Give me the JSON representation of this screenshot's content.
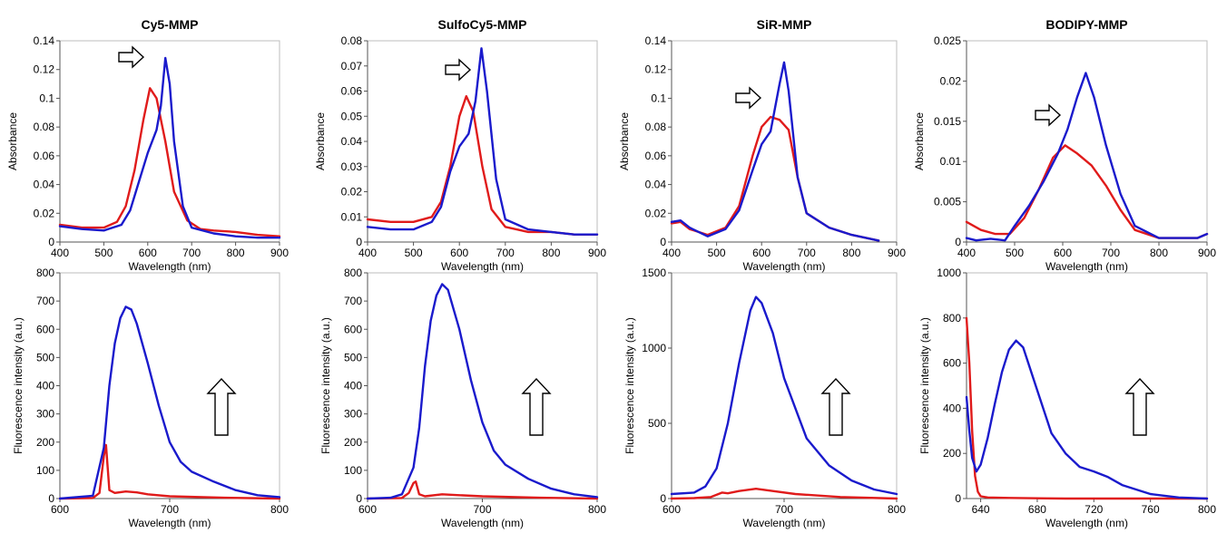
{
  "chart_data": [
    {
      "type": "line",
      "title": "Cy5-MMP",
      "xlabel": "Wavelength (nm)",
      "ylabel": "Absorbance",
      "xlim": [
        400,
        900
      ],
      "ylim": [
        0,
        0.14
      ],
      "xticks": [
        400,
        500,
        600,
        700,
        800,
        900
      ],
      "yticks": [
        0,
        0.02,
        0.04,
        0.06,
        0.08,
        0.1,
        0.12,
        0.14
      ],
      "xtick_labels": [
        "400",
        "500",
        "600",
        "700",
        "800",
        "900"
      ],
      "ytick_labels": [
        "0",
        "0.02",
        "0.04",
        "0.06",
        "0.08",
        "0.1",
        "0.12",
        "0.14"
      ],
      "arrow": "right",
      "series": [
        {
          "color": "#e01b1b",
          "x": [
            400,
            450,
            500,
            530,
            550,
            570,
            590,
            605,
            620,
            640,
            660,
            690,
            720,
            750,
            800,
            850,
            900
          ],
          "y": [
            0.012,
            0.01,
            0.01,
            0.014,
            0.025,
            0.05,
            0.085,
            0.107,
            0.1,
            0.07,
            0.035,
            0.015,
            0.009,
            0.008,
            0.007,
            0.005,
            0.004
          ]
        },
        {
          "color": "#1a1acc",
          "x": [
            400,
            450,
            500,
            540,
            560,
            580,
            600,
            620,
            630,
            640,
            650,
            660,
            680,
            700,
            750,
            800,
            850,
            900
          ],
          "y": [
            0.011,
            0.009,
            0.008,
            0.012,
            0.022,
            0.042,
            0.062,
            0.078,
            0.095,
            0.128,
            0.11,
            0.07,
            0.025,
            0.01,
            0.006,
            0.004,
            0.003,
            0.003
          ]
        }
      ]
    },
    {
      "type": "line",
      "title": "SulfoCy5-MMP",
      "xlabel": "Wavelength (nm)",
      "ylabel": "Absorbance",
      "xlim": [
        400,
        900
      ],
      "ylim": [
        0,
        0.08
      ],
      "xticks": [
        400,
        500,
        600,
        700,
        800,
        900
      ],
      "yticks": [
        0,
        0.01,
        0.02,
        0.03,
        0.04,
        0.05,
        0.06,
        0.07,
        0.08
      ],
      "xtick_labels": [
        "400",
        "500",
        "600",
        "700",
        "800",
        "900"
      ],
      "ytick_labels": [
        "0",
        "0.01",
        "0.02",
        "0.03",
        "0.04",
        "0.05",
        "0.06",
        "0.07",
        "0.08"
      ],
      "arrow": "right",
      "series": [
        {
          "color": "#e01b1b",
          "x": [
            400,
            450,
            500,
            540,
            560,
            580,
            600,
            615,
            630,
            650,
            670,
            700,
            750,
            800,
            850,
            900
          ],
          "y": [
            0.009,
            0.008,
            0.008,
            0.01,
            0.016,
            0.03,
            0.05,
            0.058,
            0.052,
            0.03,
            0.013,
            0.006,
            0.004,
            0.004,
            0.003,
            0.003
          ]
        },
        {
          "color": "#1a1acc",
          "x": [
            400,
            450,
            500,
            540,
            560,
            580,
            600,
            620,
            635,
            648,
            660,
            680,
            700,
            750,
            800,
            850,
            900
          ],
          "y": [
            0.006,
            0.005,
            0.005,
            0.008,
            0.014,
            0.028,
            0.038,
            0.043,
            0.056,
            0.077,
            0.06,
            0.025,
            0.009,
            0.005,
            0.004,
            0.003,
            0.003
          ]
        }
      ]
    },
    {
      "type": "line",
      "title": "SiR-MMP",
      "xlabel": "Wavelength (nm)",
      "ylabel": "Absorbance",
      "xlim": [
        400,
        900
      ],
      "ylim": [
        0,
        0.14
      ],
      "xticks": [
        400,
        500,
        600,
        700,
        800,
        900
      ],
      "yticks": [
        0,
        0.02,
        0.04,
        0.06,
        0.08,
        0.1,
        0.12,
        0.14
      ],
      "xtick_labels": [
        "400",
        "500",
        "600",
        "700",
        "800",
        "900"
      ],
      "ytick_labels": [
        "0",
        "0.02",
        "0.04",
        "0.06",
        "0.08",
        "0.1",
        "0.12",
        "0.14"
      ],
      "arrow": "right",
      "series": [
        {
          "color": "#e01b1b",
          "x": [
            400,
            420,
            440,
            480,
            520,
            550,
            580,
            600,
            620,
            640,
            660,
            680,
            700,
            750,
            800,
            860
          ],
          "y": [
            0.013,
            0.014,
            0.009,
            0.005,
            0.01,
            0.025,
            0.06,
            0.08,
            0.087,
            0.085,
            0.078,
            0.045,
            0.02,
            0.01,
            0.005,
            0.001
          ]
        },
        {
          "color": "#1a1acc",
          "x": [
            400,
            420,
            440,
            480,
            520,
            550,
            580,
            600,
            620,
            640,
            650,
            660,
            680,
            700,
            750,
            800,
            860
          ],
          "y": [
            0.014,
            0.015,
            0.01,
            0.004,
            0.009,
            0.022,
            0.05,
            0.068,
            0.077,
            0.11,
            0.125,
            0.105,
            0.045,
            0.02,
            0.01,
            0.005,
            0.001
          ]
        }
      ]
    },
    {
      "type": "line",
      "title": "BODIPY-MMP",
      "xlabel": "Wavelength (nm)",
      "ylabel": "Absorbance",
      "xlim": [
        400,
        900
      ],
      "ylim": [
        0,
        0.025
      ],
      "xticks": [
        400,
        500,
        600,
        700,
        800,
        900
      ],
      "yticks": [
        0,
        0.005,
        0.01,
        0.015,
        0.02,
        0.025
      ],
      "xtick_labels": [
        "400",
        "500",
        "600",
        "700",
        "800",
        "900"
      ],
      "ytick_labels": [
        "0",
        "0.005",
        "0.01",
        "0.015",
        "0.02",
        "0.025"
      ],
      "arrow": "right",
      "series": [
        {
          "color": "#e01b1b",
          "x": [
            400,
            430,
            460,
            490,
            520,
            550,
            580,
            605,
            630,
            660,
            690,
            720,
            750,
            800,
            850,
            880,
            900
          ],
          "y": [
            0.0025,
            0.0015,
            0.001,
            0.001,
            0.003,
            0.0065,
            0.0105,
            0.012,
            0.011,
            0.0095,
            0.007,
            0.004,
            0.0015,
            0.0005,
            0.0005,
            0.0005,
            0.001
          ]
        },
        {
          "color": "#1a1acc",
          "x": [
            400,
            420,
            450,
            480,
            500,
            530,
            560,
            590,
            610,
            630,
            648,
            665,
            690,
            720,
            750,
            800,
            850,
            880,
            900
          ],
          "y": [
            0.0005,
            0.0002,
            0.0004,
            0.0002,
            0.002,
            0.0045,
            0.0075,
            0.011,
            0.014,
            0.018,
            0.021,
            0.018,
            0.012,
            0.006,
            0.002,
            0.0005,
            0.0005,
            0.0005,
            0.001
          ]
        }
      ]
    },
    {
      "type": "line",
      "xlabel": "Wavelength (nm)",
      "ylabel": "Fluorescence intensity (a.u.)",
      "xlim": [
        600,
        800
      ],
      "ylim": [
        0,
        800
      ],
      "xticks": [
        600,
        700,
        800
      ],
      "yticks": [
        0,
        100,
        200,
        300,
        400,
        500,
        600,
        700,
        800
      ],
      "xtick_labels": [
        "600",
        "700",
        "800"
      ],
      "ytick_labels": [
        "0",
        "100",
        "200",
        "300",
        "400",
        "500",
        "600",
        "700",
        "800"
      ],
      "arrow": "up",
      "series": [
        {
          "color": "#e01b1b",
          "x": [
            600,
            630,
            636,
            640,
            642,
            645,
            650,
            660,
            670,
            680,
            700,
            750,
            800
          ],
          "y": [
            0,
            2,
            20,
            150,
            190,
            30,
            20,
            25,
            22,
            15,
            8,
            3,
            0
          ]
        },
        {
          "color": "#1a1acc",
          "x": [
            600,
            630,
            640,
            645,
            650,
            655,
            660,
            665,
            670,
            680,
            690,
            700,
            710,
            720,
            740,
            760,
            780,
            800
          ],
          "y": [
            0,
            10,
            180,
            400,
            550,
            640,
            680,
            670,
            620,
            480,
            330,
            200,
            130,
            95,
            60,
            30,
            12,
            5
          ]
        }
      ]
    },
    {
      "type": "line",
      "xlabel": "Wavelength (nm)",
      "ylabel": "Fluorescence intensity (a.u.)",
      "xlim": [
        600,
        800
      ],
      "ylim": [
        0,
        800
      ],
      "xticks": [
        600,
        700,
        800
      ],
      "yticks": [
        0,
        100,
        200,
        300,
        400,
        500,
        600,
        700,
        800
      ],
      "xtick_labels": [
        "600",
        "700",
        "800"
      ],
      "ytick_labels": [
        "0",
        "100",
        "200",
        "300",
        "400",
        "500",
        "600",
        "700",
        "800"
      ],
      "arrow": "up",
      "series": [
        {
          "color": "#e01b1b",
          "x": [
            600,
            630,
            636,
            640,
            642,
            645,
            650,
            665,
            680,
            700,
            750,
            800
          ],
          "y": [
            0,
            2,
            20,
            55,
            60,
            15,
            8,
            15,
            12,
            8,
            3,
            0
          ]
        },
        {
          "color": "#1a1acc",
          "x": [
            600,
            620,
            630,
            640,
            645,
            650,
            655,
            660,
            665,
            670,
            680,
            690,
            700,
            710,
            720,
            740,
            760,
            780,
            800
          ],
          "y": [
            0,
            3,
            15,
            110,
            250,
            470,
            630,
            720,
            760,
            740,
            600,
            420,
            270,
            170,
            120,
            70,
            35,
            15,
            5
          ]
        }
      ]
    },
    {
      "type": "line",
      "xlabel": "Wavelength (nm)",
      "ylabel": "Fluorescence intensity (a.u.)",
      "xlim": [
        600,
        800
      ],
      "ylim": [
        0,
        1500
      ],
      "xticks": [
        600,
        700,
        800
      ],
      "yticks": [
        0,
        500,
        1000,
        1500
      ],
      "xtick_labels": [
        "600",
        "700",
        "800"
      ],
      "ytick_labels": [
        "0",
        "500",
        "1000",
        "1500"
      ],
      "arrow": "up",
      "series": [
        {
          "color": "#e01b1b",
          "x": [
            600,
            620,
            635,
            645,
            650,
            660,
            675,
            690,
            710,
            750,
            800
          ],
          "y": [
            0,
            3,
            10,
            40,
            35,
            50,
            65,
            50,
            30,
            10,
            0
          ]
        },
        {
          "color": "#1a1acc",
          "x": [
            600,
            620,
            630,
            640,
            650,
            660,
            670,
            675,
            680,
            690,
            700,
            720,
            740,
            760,
            780,
            800
          ],
          "y": [
            30,
            40,
            80,
            200,
            500,
            900,
            1250,
            1340,
            1300,
            1100,
            800,
            400,
            220,
            120,
            60,
            30
          ]
        }
      ]
    },
    {
      "type": "line",
      "xlabel": "Wavelength (nm)",
      "ylabel": "Fluorescence intensity (a.u.)",
      "xlim": [
        630,
        800
      ],
      "ylim": [
        0,
        1000
      ],
      "xticks": [
        640,
        680,
        720,
        760,
        800
      ],
      "yticks": [
        0,
        200,
        400,
        600,
        800,
        1000
      ],
      "xtick_labels": [
        "640",
        "680",
        "720",
        "760",
        "800"
      ],
      "ytick_labels": [
        "0",
        "200",
        "400",
        "600",
        "800",
        "1000"
      ],
      "arrow": "up",
      "series": [
        {
          "color": "#e01b1b",
          "x": [
            630,
            632,
            634,
            636,
            638,
            640,
            645,
            660,
            700,
            760,
            800
          ],
          "y": [
            800,
            600,
            300,
            100,
            30,
            10,
            5,
            3,
            0,
            0,
            0
          ]
        },
        {
          "color": "#1a1acc",
          "x": [
            630,
            632,
            634,
            637,
            640,
            645,
            650,
            655,
            660,
            665,
            670,
            680,
            690,
            700,
            710,
            720,
            730,
            740,
            760,
            780,
            800
          ],
          "y": [
            450,
            300,
            180,
            120,
            150,
            270,
            420,
            560,
            660,
            700,
            670,
            480,
            290,
            200,
            140,
            120,
            95,
            60,
            20,
            5,
            0
          ]
        }
      ]
    }
  ]
}
